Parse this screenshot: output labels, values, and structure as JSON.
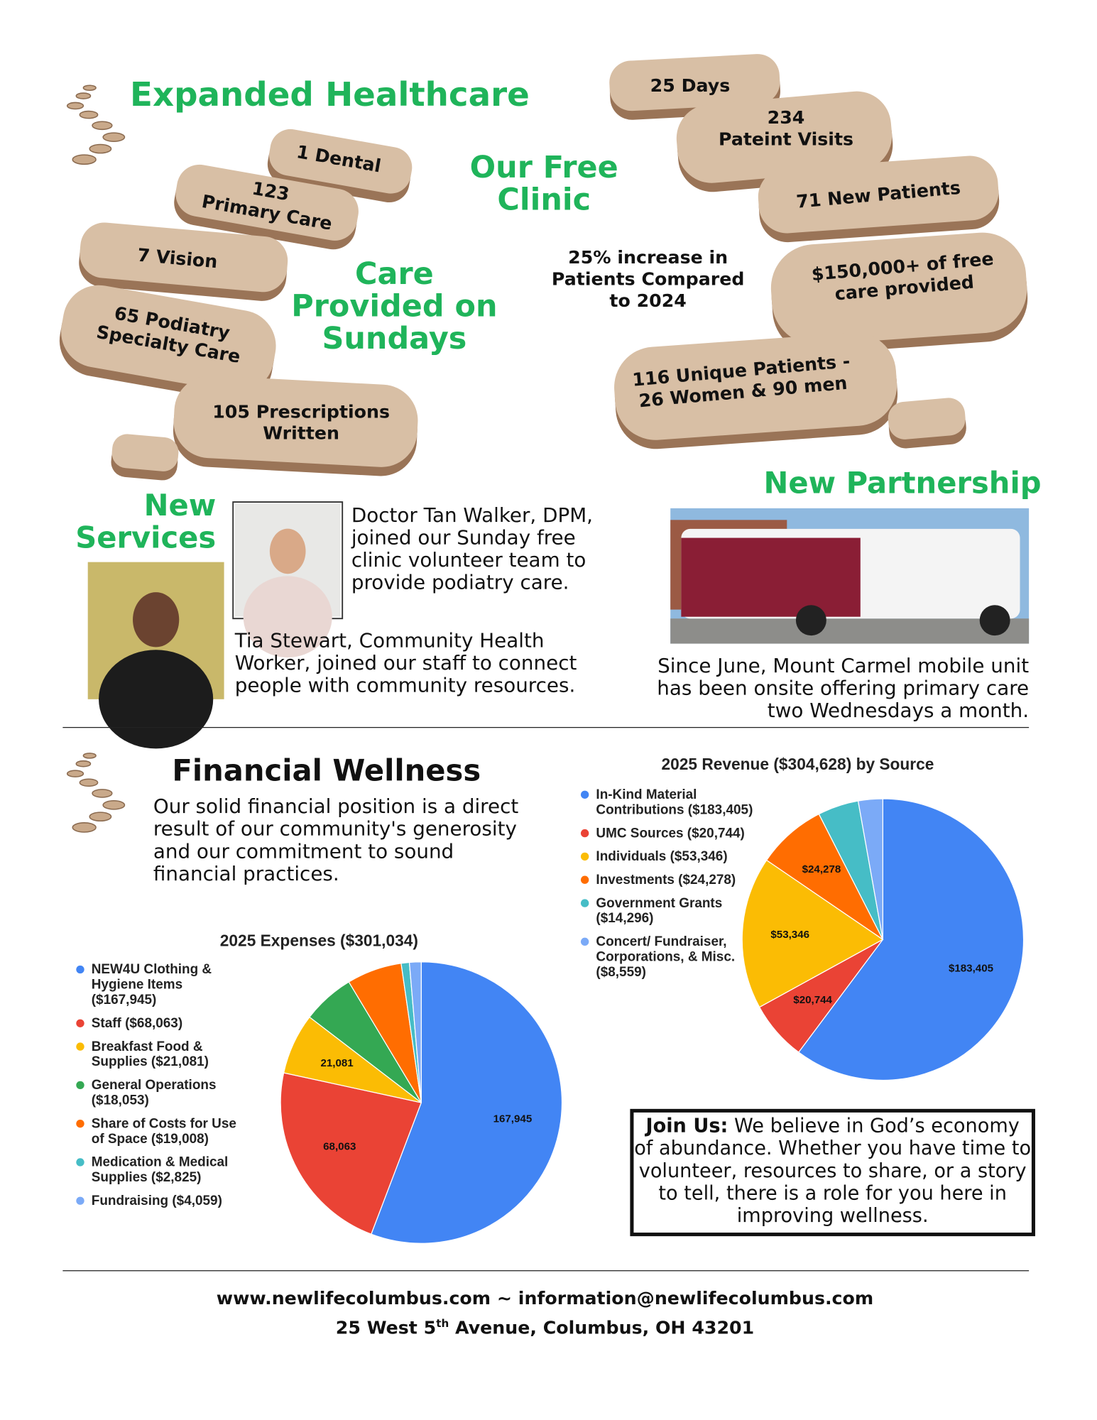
{
  "healthcare": {
    "title": "Expanded Healthcare",
    "subtitle": [
      "Care",
      "Provided on",
      "Sundays"
    ],
    "stats": [
      [
        "1 Dental"
      ],
      [
        "123",
        "Primary Care"
      ],
      [
        "7 Vision"
      ],
      [
        "65 Podiatry",
        "Specialty Care"
      ],
      [
        "105 Prescriptions",
        "Written"
      ]
    ]
  },
  "clinic": {
    "title": [
      "Our Free",
      "Clinic"
    ],
    "note": [
      "25% increase in",
      "Patients Compared",
      "to 2024"
    ],
    "stats": [
      [
        "25 Days"
      ],
      [
        "234",
        "Pateint Visits"
      ],
      [
        "71 New Patients"
      ],
      [
        "$150,000+ of free",
        "care provided"
      ],
      [
        "116 Unique Patients -",
        "26 Women & 90 men"
      ]
    ]
  },
  "services": {
    "title": [
      "New",
      "Services"
    ],
    "doctor": "Doctor Tan Walker, DPM, joined our Sunday free clinic volunteer team to provide podiatry care.",
    "worker": "Tia Stewart, Community Health Worker, joined our staff to connect people with community resources."
  },
  "partnership": {
    "title": "New Partnership",
    "text": "Since June, Mount Carmel mobile unit has been onsite offering primary care two Wednesdays a month."
  },
  "financial": {
    "title": "Financial Wellness",
    "text": "Our solid financial position is a direct result of our community's generosity and our commitment to sound financial practices."
  },
  "chart_data": [
    {
      "type": "pie",
      "title": "2025 Expenses ($301,034)",
      "categories": [
        "NEW4U  Clothing & Hygiene Items ($167,945)",
        "Staff ($68,063)",
        "Breakfast Food & Supplies ($21,081)",
        "General Operations ($18,053)",
        "Share of Costs for Use of Space ($19,008)",
        "Medication & Medical Supplies ($2,825)",
        "Fundraising ($4,059)"
      ],
      "values": [
        167945,
        68063,
        21081,
        18053,
        19008,
        2825,
        4059
      ],
      "value_labels": [
        "167,945",
        "68,063",
        "21,081",
        null,
        null,
        null,
        null
      ],
      "colors": [
        "#4285f4",
        "#ea4335",
        "#fbbc04",
        "#34a853",
        "#ff6d01",
        "#46bdc6",
        "#7baaf7"
      ]
    },
    {
      "type": "pie",
      "title": "2025 Revenue ($304,628) by Source",
      "categories": [
        "In-Kind Material Contributions ($183,405)",
        "UMC Sources ($20,744)",
        "Individuals ($53,346)",
        "Investments ($24,278)",
        "Government Grants ($14,296)",
        "Concert/ Fundraiser, Corporations, & Misc. ($8,559)"
      ],
      "values": [
        183405,
        20744,
        53346,
        24278,
        14296,
        8559
      ],
      "value_labels": [
        "$183,405",
        "$20,744",
        "$53,346",
        "$24,278",
        null,
        null
      ],
      "colors": [
        "#4285f4",
        "#ea4335",
        "#fbbc04",
        "#ff6d01",
        "#46bdc6",
        "#7baaf7"
      ]
    }
  ],
  "join": {
    "lead": "Join Us:",
    "text": "We believe in God’s economy of abundance. Whether you have time to volunteer, resources to share, or a story to tell, there is a role for you here in improving wellness."
  },
  "footer": {
    "web": "www.newlifecolumbus.com ~ information@newlifecolumbus.com",
    "address": [
      "25 West 5",
      "th",
      "Avenue, Columbus, OH 43201"
    ]
  }
}
